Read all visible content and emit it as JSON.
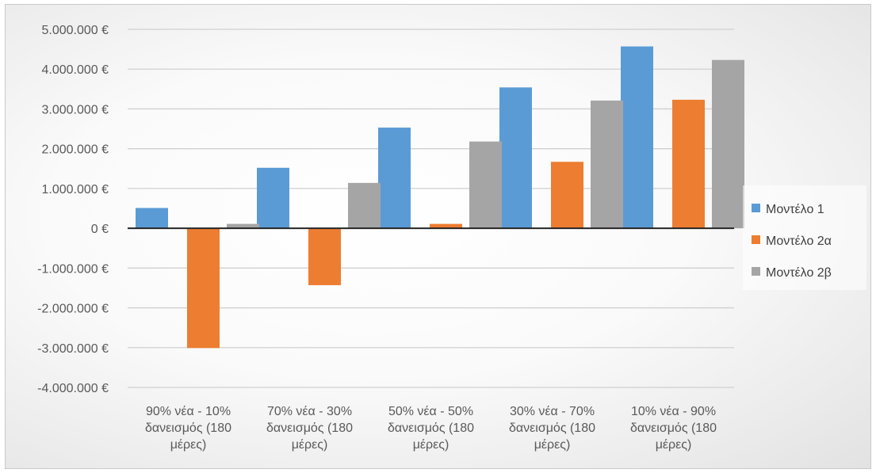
{
  "chart_data": {
    "type": "bar",
    "title": "",
    "xlabel": "",
    "ylabel": "",
    "categories": [
      [
        "90% νέα - 10%",
        "δανεισμός (180",
        "μέρες)"
      ],
      [
        "70% νέα - 30%",
        "δανεισμός (180",
        "μέρες)"
      ],
      [
        "50% νέα - 50%",
        "δανεισμός (180",
        "μέρες)"
      ],
      [
        "30% νέα - 70%",
        "δανεισμός (180",
        "μέρες)"
      ],
      [
        "10% νέα - 90%",
        "δανεισμός (180",
        "μέρες)"
      ]
    ],
    "series": [
      {
        "name": "Μοντέλο 1",
        "color": "#5B9BD5",
        "values": [
          510000,
          1520000,
          2530000,
          3540000,
          4570000
        ]
      },
      {
        "name": "Μοντέλο 2α",
        "color": "#ED7D31",
        "values": [
          -3010000,
          -1430000,
          110000,
          1670000,
          3230000
        ]
      },
      {
        "name": "Μοντέλο 2β",
        "color": "#A5A5A5",
        "values": [
          110000,
          1140000,
          2180000,
          3210000,
          4230000
        ]
      }
    ],
    "ylim": [
      -4000000,
      5000000
    ],
    "ytick_step": 1000000,
    "ytick_labels": [
      "-4.000.000 €",
      "-3.000.000 €",
      "-2.000.000 €",
      "-1.000.000 €",
      "0 €",
      "1.000.000 €",
      "2.000.000 €",
      "3.000.000 €",
      "4.000.000 €",
      "5.000.000 €"
    ],
    "grid": true,
    "legend_position": "right"
  }
}
